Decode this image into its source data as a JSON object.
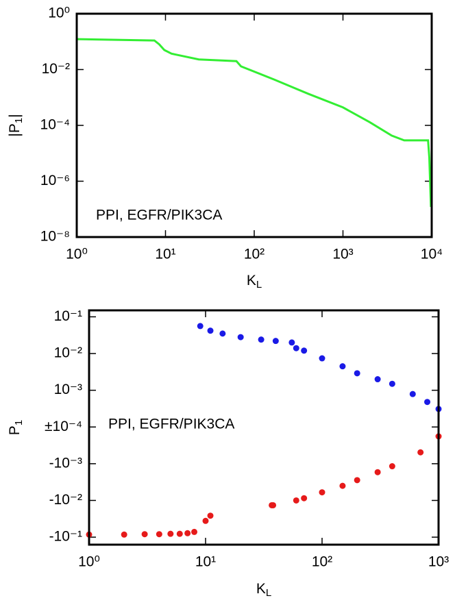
{
  "chart_data": [
    {
      "type": "line",
      "xscale": "log",
      "yscale": "log",
      "xlabel": {
        "base": "K",
        "sub": "L"
      },
      "ylabel": {
        "base": "|P",
        "sub": "1",
        "end": "|"
      },
      "annotation": "PPI, EGFR/PIK3CA",
      "xlim": [
        1,
        10000
      ],
      "ylim": [
        1e-08,
        1
      ],
      "xticks": [
        {
          "value": 1,
          "label": "10⁰"
        },
        {
          "value": 10,
          "label": "10¹"
        },
        {
          "value": 100,
          "label": "10²"
        },
        {
          "value": 1000,
          "label": "10³"
        },
        {
          "value": 10000,
          "label": "10⁴"
        }
      ],
      "yticks": [
        {
          "value": 1,
          "label": "10⁰"
        },
        {
          "value": 0.01,
          "label": "10⁻²"
        },
        {
          "value": 0.0001,
          "label": "10⁻⁴"
        },
        {
          "value": 1e-06,
          "label": "10⁻⁶"
        },
        {
          "value": 1e-08,
          "label": "10⁻⁸"
        }
      ],
      "series": [
        {
          "color": "#33ee33",
          "x": [
            1,
            7.5,
            8.5,
            9.7,
            11.7,
            23.7,
            63,
            71,
            167,
            407,
            1000,
            2000,
            3540,
            4900,
            9100,
            9400,
            9800
          ],
          "values": [
            0.123,
            0.11,
            0.08,
            0.05,
            0.037,
            0.023,
            0.02,
            0.013,
            0.0044,
            0.00135,
            0.00044,
            0.00013,
            4.3e-05,
            2.9e-05,
            2.9e-05,
            7e-06,
            1.2e-07
          ]
        }
      ]
    },
    {
      "type": "scatter",
      "xscale": "log",
      "yscale": "symlog",
      "linthresh": 0.0001,
      "xlabel": {
        "base": "K",
        "sub": "L"
      },
      "ylabel": {
        "base": "P",
        "sub": "1",
        "end": ""
      },
      "annotation": "PPI, EGFR/PIK3CA",
      "xlim": [
        1,
        1000
      ],
      "ylim": [
        -0.16,
        0.15
      ],
      "xticks": [
        {
          "value": 1,
          "label": "10⁰"
        },
        {
          "value": 10,
          "label": "10¹"
        },
        {
          "value": 100,
          "label": "10²"
        },
        {
          "value": 1000,
          "label": "10³"
        }
      ],
      "yticks": [
        {
          "value": 0.1,
          "label": "10⁻¹"
        },
        {
          "value": 0.01,
          "label": "10⁻²"
        },
        {
          "value": 0.001,
          "label": "10⁻³"
        },
        {
          "value": 0,
          "label": "±10⁻⁴"
        },
        {
          "value": -0.001,
          "label": "-10⁻³"
        },
        {
          "value": -0.01,
          "label": "-10⁻²"
        },
        {
          "value": -0.1,
          "label": "-10⁻¹"
        }
      ],
      "series": [
        {
          "color": "#1a1ae6",
          "x": [
            9,
            11,
            14,
            20,
            30,
            40,
            55,
            60,
            70,
            100,
            150,
            200,
            300,
            400,
            600,
            800,
            1000
          ],
          "values": [
            0.056,
            0.042,
            0.035,
            0.028,
            0.024,
            0.022,
            0.02,
            0.014,
            0.012,
            0.0074,
            0.0045,
            0.0029,
            0.002,
            0.0015,
            0.00079,
            0.00048,
            0.00031
          ]
        },
        {
          "color": "#e61a1a",
          "x": [
            1,
            2,
            3,
            4,
            5,
            6,
            7,
            8,
            10,
            11,
            37,
            38,
            60,
            70,
            100,
            150,
            200,
            300,
            400,
            700,
            1000
          ],
          "values": [
            -0.085,
            -0.085,
            -0.083,
            -0.083,
            -0.081,
            -0.081,
            -0.078,
            -0.072,
            -0.036,
            -0.026,
            -0.0135,
            -0.0135,
            -0.01,
            -0.0087,
            -0.006,
            -0.004,
            -0.0028,
            -0.0017,
            -0.00117,
            -0.00049,
            -0.00018
          ]
        }
      ]
    }
  ]
}
